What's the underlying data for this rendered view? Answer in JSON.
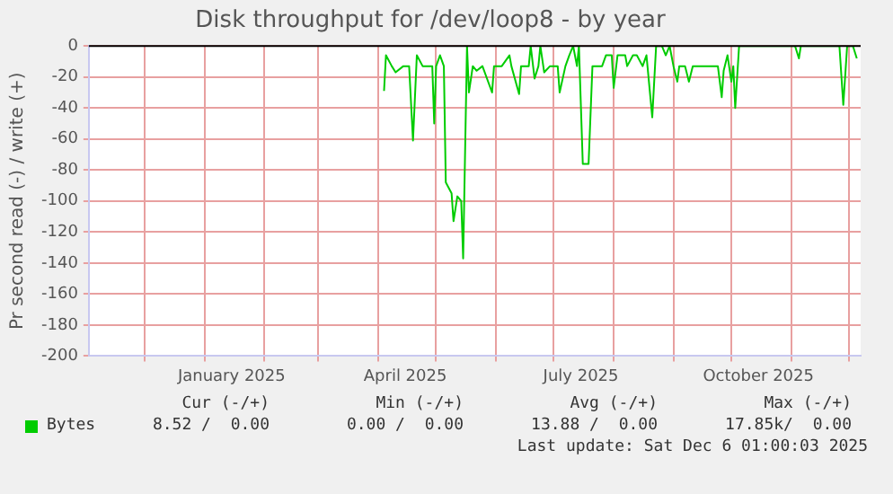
{
  "chart_data": {
    "type": "line",
    "title": "Disk throughput for /dev/loop8 - by year",
    "ylabel": "Pr second read (-) / write (+)",
    "xlim": [
      "2024-11-02",
      "2025-12-07"
    ],
    "ylim": [
      -200,
      0
    ],
    "xticks": [
      {
        "value": "2024-12-01",
        "label": null
      },
      {
        "value": "2025-01-01",
        "label": null
      },
      {
        "value": "2025-01-15",
        "label": "January 2025"
      },
      {
        "value": "2025-02-01",
        "label": null
      },
      {
        "value": "2025-03-01",
        "label": null
      },
      {
        "value": "2025-04-01",
        "label": null
      },
      {
        "value": "2025-04-15",
        "label": "April 2025"
      },
      {
        "value": "2025-05-01",
        "label": null
      },
      {
        "value": "2025-06-01",
        "label": null
      },
      {
        "value": "2025-07-01",
        "label": null
      },
      {
        "value": "2025-07-15",
        "label": "July 2025"
      },
      {
        "value": "2025-08-01",
        "label": null
      },
      {
        "value": "2025-09-01",
        "label": null
      },
      {
        "value": "2025-10-01",
        "label": null
      },
      {
        "value": "2025-10-15",
        "label": "October 2025"
      },
      {
        "value": "2025-11-01",
        "label": null
      },
      {
        "value": "2025-12-01",
        "label": null
      }
    ],
    "yticks": [
      -200,
      -180,
      -160,
      -140,
      -120,
      -100,
      -80,
      -60,
      -40,
      -20,
      0
    ],
    "grid": true,
    "legend": "bottom",
    "marker": "none",
    "line_style": "solid",
    "ref_lines": [
      {
        "axis": "y",
        "value": 0,
        "color": "#000000"
      }
    ],
    "series": [
      {
        "name": "Bytes",
        "color": "#00cc00",
        "x": [
          "2025-04-04",
          "2025-04-05",
          "2025-04-08",
          "2025-04-10",
          "2025-04-14",
          "2025-04-17",
          "2025-04-19",
          "2025-04-21",
          "2025-04-24",
          "2025-04-29",
          "2025-04-30",
          "2025-05-01",
          "2025-05-03",
          "2025-05-05",
          "2025-05-06",
          "2025-05-09",
          "2025-05-10",
          "2025-05-12",
          "2025-05-14",
          "2025-05-15",
          "2025-05-17",
          "2025-05-18",
          "2025-05-20",
          "2025-05-22",
          "2025-05-25",
          "2025-05-30",
          "2025-05-31",
          "2025-06-04",
          "2025-06-08",
          "2025-06-09",
          "2025-06-13",
          "2025-06-14",
          "2025-06-18",
          "2025-06-19",
          "2025-06-21",
          "2025-06-23",
          "2025-06-24",
          "2025-06-26",
          "2025-06-29",
          "2025-07-03",
          "2025-07-04",
          "2025-07-07",
          "2025-07-09",
          "2025-07-11",
          "2025-07-13",
          "2025-07-14",
          "2025-07-16",
          "2025-07-19",
          "2025-07-21",
          "2025-07-26",
          "2025-07-28",
          "2025-07-31",
          "2025-08-01",
          "2025-08-03",
          "2025-08-07",
          "2025-08-08",
          "2025-08-11",
          "2025-08-13",
          "2025-08-16",
          "2025-08-18",
          "2025-08-21",
          "2025-08-23",
          "2025-08-26",
          "2025-08-28",
          "2025-08-30",
          "2025-09-01",
          "2025-09-03",
          "2025-09-04",
          "2025-09-07",
          "2025-09-09",
          "2025-09-11",
          "2025-09-24",
          "2025-09-26",
          "2025-09-27",
          "2025-09-29",
          "2025-10-01",
          "2025-10-02",
          "2025-10-03",
          "2025-10-05",
          "2025-11-03",
          "2025-11-05",
          "2025-11-06",
          "2025-11-26",
          "2025-11-28",
          "2025-11-30",
          "2025-12-03",
          "2025-12-05"
        ],
        "values": [
          -29,
          -6,
          -13,
          -17,
          -13,
          -13,
          -61,
          -6,
          -13,
          -13,
          -50,
          -13,
          -6,
          -13,
          -88,
          -95,
          -113,
          -97,
          -100,
          -137,
          0,
          -30,
          -13,
          -16,
          -13,
          -30,
          -13,
          -13,
          -6,
          -13,
          -31,
          -13,
          -13,
          0,
          -21,
          -13,
          0,
          -17,
          -13,
          -13,
          -30,
          -13,
          -6,
          0,
          -13,
          0,
          -76,
          -76,
          -13,
          -13,
          -6,
          -6,
          -27,
          -6,
          -6,
          -13,
          -6,
          -6,
          -13,
          -6,
          -46,
          0,
          0,
          -6,
          0,
          -13,
          -23,
          -13,
          -13,
          -23,
          -13,
          -13,
          -33,
          -16,
          -6,
          -23,
          -13,
          -40,
          0,
          0,
          -8,
          0,
          0,
          -38,
          0,
          0,
          -8
        ]
      }
    ],
    "annotations": [
      "Cur (-/+)",
      "Min (-/+)",
      "Avg (-/+)",
      "Max (-/+)",
      "8.52 /  0.00",
      "0.00 /  0.00",
      "13.88 /  0.00",
      "17.85k/  0.00",
      "Last update: Sat Dec  6 01:00:03 2025"
    ]
  }
}
